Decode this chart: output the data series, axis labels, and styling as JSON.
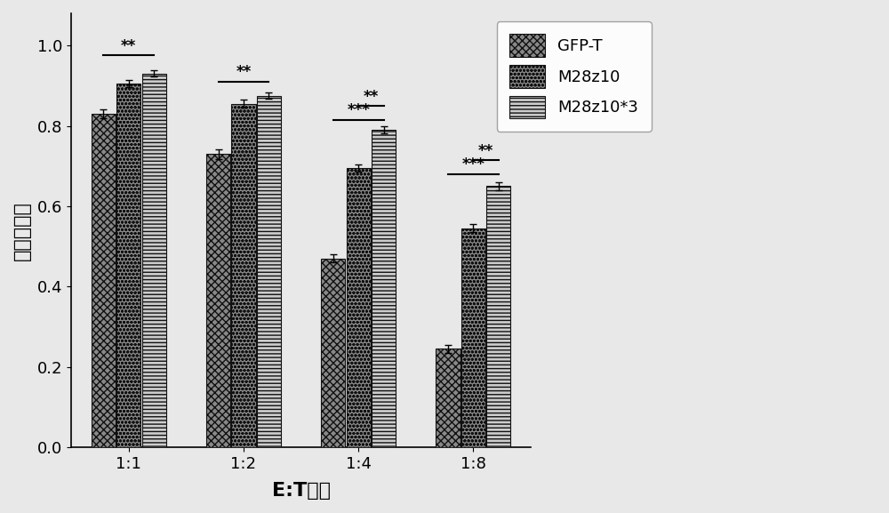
{
  "categories": [
    "1:1",
    "1:2",
    "1:4",
    "1:8"
  ],
  "series": {
    "GFP-T": {
      "values": [
        0.83,
        0.73,
        0.47,
        0.245
      ],
      "errors": [
        0.01,
        0.012,
        0.01,
        0.01
      ],
      "hatch": "xxxx",
      "facecolor": "#888888",
      "edgecolor": "#111111"
    },
    "M28z10": {
      "values": [
        0.905,
        0.855,
        0.695,
        0.545
      ],
      "errors": [
        0.008,
        0.01,
        0.008,
        0.01
      ],
      "hatch": "oooo",
      "facecolor": "#888888",
      "edgecolor": "#111111"
    },
    "M28z10*3": {
      "values": [
        0.93,
        0.875,
        0.79,
        0.65
      ],
      "errors": [
        0.008,
        0.008,
        0.008,
        0.01
      ],
      "hatch": "----",
      "facecolor": "#cccccc",
      "edgecolor": "#111111"
    }
  },
  "ylabel": "杀伤百分比",
  "xlabel": "E:T比例",
  "ylim": [
    0.0,
    1.08
  ],
  "yticks": [
    0.0,
    0.2,
    0.4,
    0.6,
    0.8,
    1.0
  ],
  "bar_width": 0.22,
  "background_color": "#e8e8e8",
  "label_fontsize": 16,
  "tick_fontsize": 13,
  "legend_fontsize": 13
}
